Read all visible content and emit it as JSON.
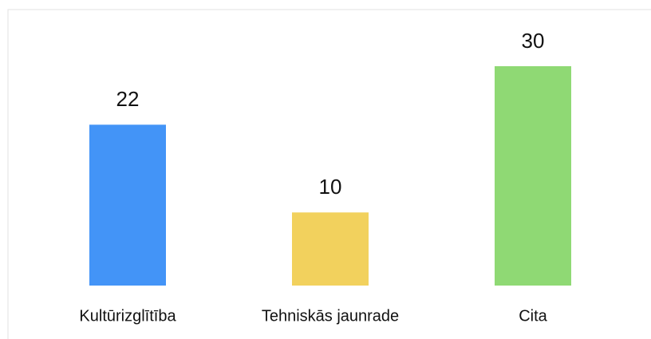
{
  "chart_data": {
    "type": "bar",
    "categories": [
      "Kultūrizglītība",
      "Tehniskās jaunrade",
      "Cita"
    ],
    "values": [
      22,
      10,
      30
    ],
    "colors": [
      "#4394f7",
      "#f2d15d",
      "#8fd974"
    ]
  }
}
